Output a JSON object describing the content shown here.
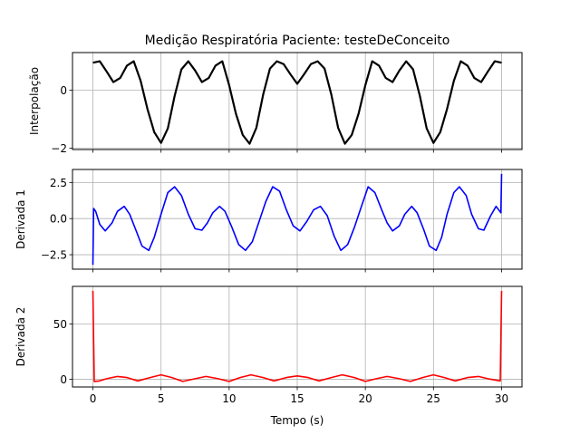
{
  "figure": {
    "title": "Medição Respiratória Paciente: testeDeConceito",
    "xlabel": "Tempo (s)"
  },
  "chart_data": [
    {
      "type": "line",
      "ylabel": "Interpolação",
      "xlim": [
        -1.5,
        31.5
      ],
      "ylim": [
        -2.05,
        1.3
      ],
      "xticks": [
        0,
        5,
        10,
        15,
        20,
        25,
        30
      ],
      "yticks": [
        -2,
        0
      ],
      "ytick_labels": [
        "−2",
        "0"
      ],
      "grid": true,
      "series": [
        {
          "color": "#000000",
          "x": [
            0,
            0.5,
            1,
            1.5,
            2,
            2.5,
            3,
            3.5,
            4,
            4.5,
            5,
            5.5,
            6,
            6.5,
            7,
            7.5,
            8,
            8.5,
            9,
            9.5,
            10,
            10.5,
            11,
            11.5,
            12,
            12.5,
            13,
            13.5,
            14,
            14.5,
            15,
            15.5,
            16,
            16.5,
            17,
            17.5,
            18,
            18.5,
            19,
            19.5,
            20,
            20.5,
            21,
            21.5,
            22,
            22.5,
            23,
            23.5,
            24,
            24.5,
            25,
            25.5,
            26,
            26.5,
            27,
            27.5,
            28,
            28.5,
            29,
            29.5,
            30
          ],
          "y": [
            0.95,
            1.0,
            0.65,
            0.28,
            0.42,
            0.85,
            1.0,
            0.32,
            -0.65,
            -1.45,
            -1.82,
            -1.32,
            -0.2,
            0.72,
            1.0,
            0.68,
            0.28,
            0.42,
            0.85,
            1.0,
            0.18,
            -0.82,
            -1.55,
            -1.85,
            -1.3,
            -0.15,
            0.75,
            1.0,
            0.9,
            0.55,
            0.22,
            0.55,
            0.9,
            1.0,
            0.75,
            -0.15,
            -1.3,
            -1.85,
            -1.55,
            -0.82,
            0.18,
            1.0,
            0.85,
            0.42,
            0.28,
            0.68,
            1.0,
            0.72,
            -0.2,
            -1.32,
            -1.82,
            -1.45,
            -0.65,
            0.32,
            1.0,
            0.85,
            0.42,
            0.28,
            0.65,
            1.0,
            0.95
          ]
        }
      ]
    },
    {
      "type": "line",
      "ylabel": "Derivada 1",
      "xlim": [
        -1.5,
        31.5
      ],
      "ylim": [
        -3.5,
        3.4
      ],
      "xticks": [
        0,
        5,
        10,
        15,
        20,
        25,
        30
      ],
      "yticks": [
        -2.5,
        0.0,
        2.5
      ],
      "ytick_labels": [
        "−2.5",
        "0.0",
        "2.5"
      ],
      "grid": true,
      "series": [
        {
          "color": "#0000ff",
          "x": [
            0,
            0.05,
            0.2,
            0.5,
            0.9,
            1.4,
            1.8,
            2.3,
            2.7,
            3.2,
            3.6,
            4.1,
            4.5,
            5.0,
            5.5,
            6.0,
            6.5,
            7.0,
            7.5,
            8.0,
            8.4,
            8.8,
            9.3,
            9.7,
            10.2,
            10.7,
            11.2,
            11.7,
            12.2,
            12.7,
            13.2,
            13.7,
            14.2,
            14.7,
            15.2,
            15.7,
            16.2,
            16.7,
            17.2,
            17.7,
            18.2,
            18.7,
            19.2,
            19.7,
            20.2,
            20.7,
            21.2,
            21.6,
            22.0,
            22.5,
            22.9,
            23.4,
            23.8,
            24.3,
            24.7,
            25.2,
            25.6,
            26.0,
            26.5,
            26.9,
            27.4,
            27.8,
            28.3,
            28.7,
            29.2,
            29.6,
            29.95,
            30.0
          ],
          "y": [
            -3.2,
            0.7,
            0.5,
            -0.4,
            -0.85,
            -0.3,
            0.5,
            0.85,
            0.3,
            -0.9,
            -1.9,
            -2.2,
            -1.3,
            0.3,
            1.8,
            2.2,
            1.6,
            0.3,
            -0.7,
            -0.8,
            -0.3,
            0.4,
            0.85,
            0.5,
            -0.6,
            -1.8,
            -2.2,
            -1.6,
            -0.2,
            1.2,
            2.2,
            1.9,
            0.6,
            -0.5,
            -0.85,
            -0.2,
            0.6,
            0.85,
            0.2,
            -1.2,
            -2.2,
            -1.8,
            -0.6,
            0.8,
            2.2,
            1.8,
            0.6,
            -0.3,
            -0.85,
            -0.5,
            0.3,
            0.85,
            0.4,
            -0.8,
            -1.9,
            -2.2,
            -1.3,
            0.3,
            1.8,
            2.2,
            1.6,
            0.3,
            -0.7,
            -0.8,
            0.2,
            0.85,
            0.4,
            3.1
          ]
        }
      ]
    },
    {
      "type": "line",
      "ylabel": "Derivada 2",
      "xlim": [
        -1.5,
        31.5
      ],
      "ylim": [
        -7,
        84
      ],
      "xticks": [
        0,
        5,
        10,
        15,
        20,
        25,
        30
      ],
      "xtick_labels": [
        "0",
        "5",
        "10",
        "15",
        "20",
        "25",
        "30"
      ],
      "yticks": [
        0,
        50
      ],
      "ytick_labels": [
        "0",
        "50"
      ],
      "grid": true,
      "series": [
        {
          "color": "#ff0000",
          "x": [
            0,
            0.1,
            0.5,
            1.0,
            1.8,
            2.5,
            3.3,
            4.2,
            5.0,
            5.8,
            6.6,
            7.5,
            8.3,
            9.2,
            10.0,
            10.8,
            11.6,
            12.5,
            13.3,
            14.2,
            15.0,
            15.8,
            16.6,
            17.5,
            18.3,
            19.2,
            20.0,
            20.8,
            21.6,
            22.5,
            23.3,
            24.2,
            25.0,
            25.8,
            26.6,
            27.5,
            28.3,
            29.0,
            29.9,
            30.0
          ],
          "y": [
            80,
            -2,
            -1.5,
            0.5,
            2.5,
            1.5,
            -1.5,
            1.5,
            4,
            1.5,
            -2,
            0.5,
            2.5,
            0.5,
            -2,
            1.5,
            4,
            1.5,
            -1.5,
            1.5,
            3,
            1.5,
            -1.5,
            1.5,
            4,
            1.5,
            -2,
            0.5,
            2.5,
            0.5,
            -2,
            1.5,
            4,
            1.5,
            -1.5,
            1.5,
            2.5,
            0.5,
            -1.5,
            80
          ]
        }
      ]
    }
  ]
}
